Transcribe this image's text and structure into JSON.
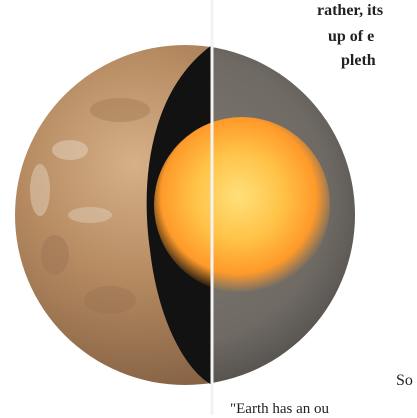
{
  "illustration": {
    "subject": "planet-interior-cutaway",
    "colors": {
      "surface": "#b58a61",
      "mantle": "#6f6a64",
      "core_center": "#ffd45a",
      "core_edge": "#ff9a2a",
      "shadow": "#121212"
    }
  },
  "text_fragments": {
    "line1": "rather, its",
    "line2": "up of e",
    "line3": "pleth",
    "line4": "So",
    "line5": "\"Earth has an ou"
  }
}
